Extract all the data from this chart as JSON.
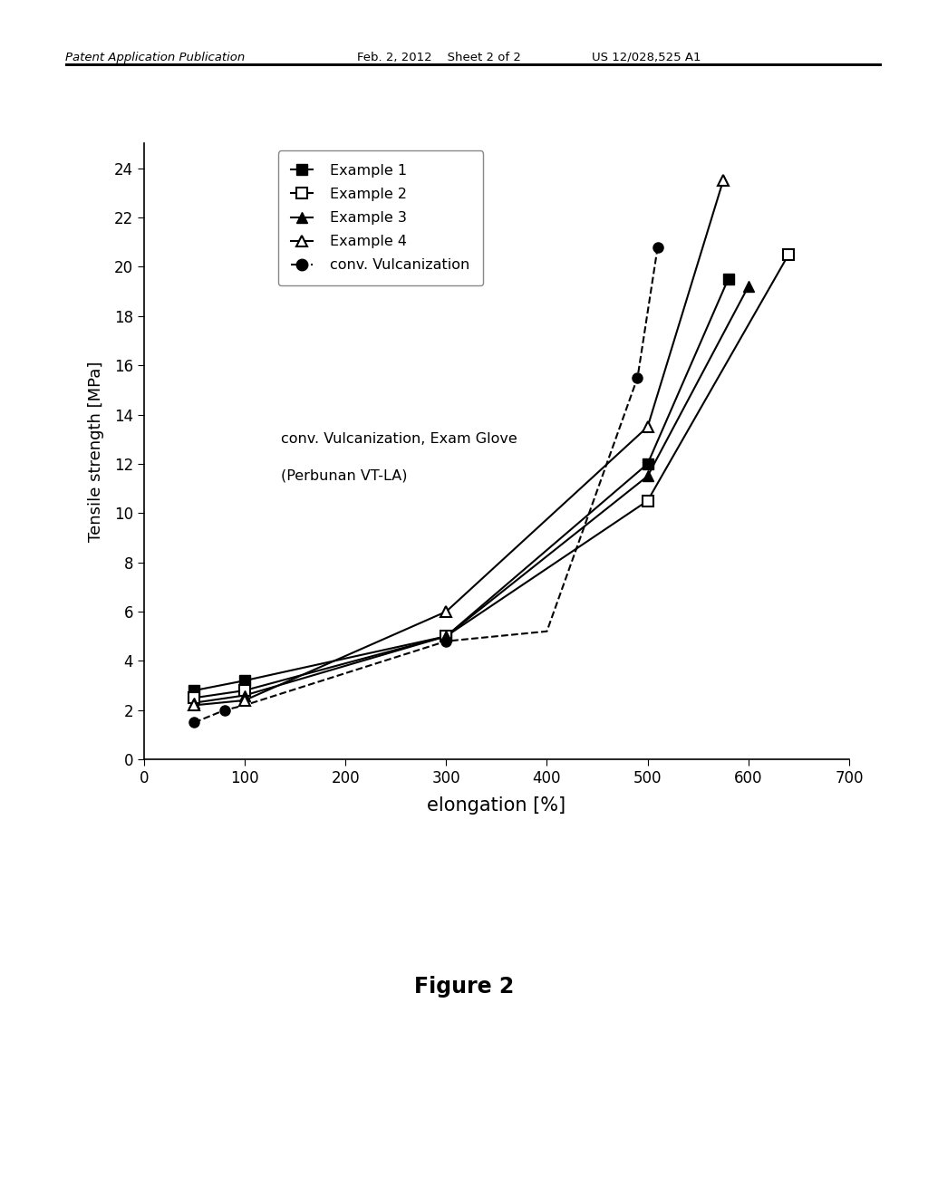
{
  "title": "",
  "xlabel": "elongation [%]",
  "ylabel": "Tensile strength [MPa]",
  "xlim": [
    0,
    700
  ],
  "ylim": [
    0,
    25
  ],
  "xticks": [
    0,
    100,
    200,
    300,
    400,
    500,
    600,
    700
  ],
  "yticks": [
    0,
    2,
    4,
    6,
    8,
    10,
    12,
    14,
    16,
    18,
    20,
    22,
    24
  ],
  "figure_caption": "Figure 2",
  "header_left": "Patent Application Publication",
  "header_mid": "Feb. 2, 2012    Sheet 2 of 2",
  "header_right": "US 12/028,525 A1",
  "annotation_line1": "conv. Vulcanization, Exam Glove",
  "annotation_line2": "(Perbunan VT-LA)",
  "series": {
    "example1": {
      "x": [
        50,
        100,
        300,
        500,
        580
      ],
      "y": [
        2.8,
        3.2,
        5.0,
        12.0,
        19.5
      ],
      "linestyle": "solid",
      "marker": "s",
      "fillstyle": "full",
      "color": "#000000",
      "label": "Example 1"
    },
    "example2": {
      "x": [
        50,
        100,
        300,
        500,
        640
      ],
      "y": [
        2.5,
        2.8,
        5.0,
        10.5,
        20.5
      ],
      "linestyle": "solid",
      "marker": "s",
      "fillstyle": "none",
      "color": "#000000",
      "label": "Example 2"
    },
    "example3": {
      "x": [
        50,
        100,
        300,
        500,
        600
      ],
      "y": [
        2.3,
        2.6,
        5.0,
        11.5,
        19.2
      ],
      "linestyle": "solid",
      "marker": "^",
      "fillstyle": "full",
      "color": "#000000",
      "label": "Example 3"
    },
    "example4": {
      "x": [
        50,
        100,
        300,
        500,
        575
      ],
      "y": [
        2.2,
        2.4,
        6.0,
        13.5,
        23.5
      ],
      "linestyle": "solid",
      "marker": "^",
      "fillstyle": "none",
      "color": "#000000",
      "label": "Example 4"
    },
    "conv_vulc": {
      "x": [
        50,
        80,
        100,
        300,
        400,
        490,
        510
      ],
      "y": [
        1.5,
        2.0,
        2.2,
        4.8,
        5.2,
        15.5,
        20.8
      ],
      "linestyle": "dashed",
      "marker": "o",
      "fillstyle": "full",
      "color": "#000000",
      "label": "conv. Vulcanization",
      "marker_x": [
        50,
        80,
        300,
        490,
        510
      ],
      "marker_y": [
        1.5,
        2.0,
        4.8,
        15.5,
        20.8
      ]
    }
  }
}
